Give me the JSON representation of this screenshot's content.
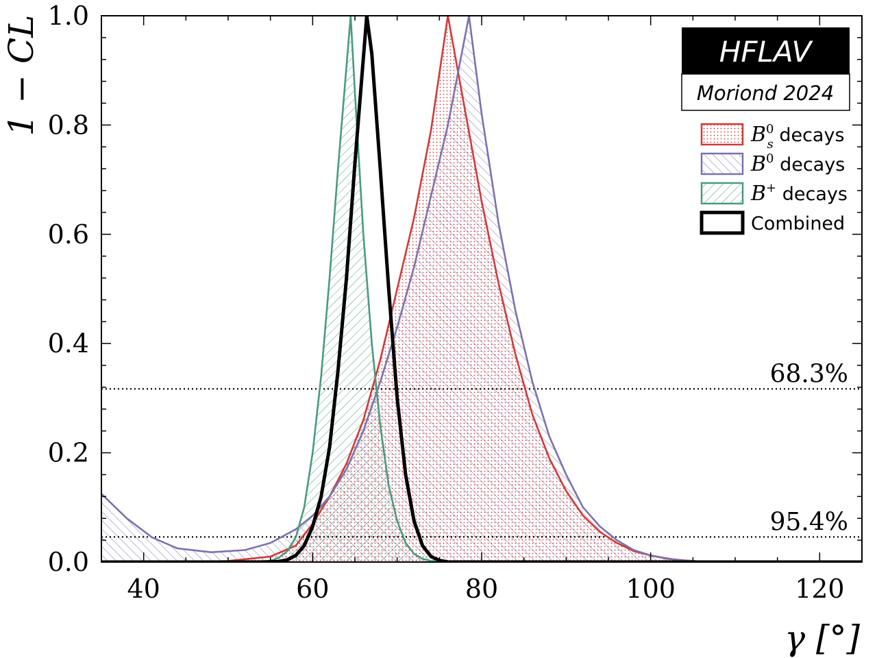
{
  "chart_data": {
    "type": "line",
    "xlabel": "γ [°]",
    "ylabel": "1 − CL",
    "xlim": [
      35,
      125
    ],
    "ylim": [
      0,
      1
    ],
    "x_ticks": [
      40,
      60,
      80,
      100,
      120
    ],
    "x_tick_labels": [
      "40",
      "60",
      "80",
      "100",
      "120"
    ],
    "y_ticks": [
      0.0,
      0.2,
      0.4,
      0.6,
      0.8,
      1.0
    ],
    "y_tick_labels": [
      "0.0",
      "0.2",
      "0.4",
      "0.6",
      "0.8",
      "1.0"
    ],
    "grid": false,
    "legend_placement": "top-right",
    "badge": {
      "title": "HFLAV",
      "subtitle": "Moriond 2024"
    },
    "reference_lines": [
      {
        "y": 0.317,
        "label": "68.3%"
      },
      {
        "y": 0.046,
        "label": "95.4%"
      }
    ],
    "series": [
      {
        "legend_main": "B",
        "legend_sup": "0",
        "legend_sub": "s",
        "legend_suffix": " decays",
        "color": "#d03a3a",
        "fill": "dots",
        "peak": 76.0,
        "x": [
          35,
          45,
          50,
          55,
          58,
          60,
          62,
          64,
          66,
          68,
          70,
          72,
          74,
          76,
          78,
          80,
          82,
          84,
          86,
          88,
          90,
          92,
          94,
          96,
          98,
          100,
          102,
          104,
          106,
          110,
          115,
          125
        ],
        "y": [
          0.0,
          0.0,
          0.002,
          0.01,
          0.03,
          0.07,
          0.12,
          0.18,
          0.26,
          0.37,
          0.5,
          0.63,
          0.79,
          1.0,
          0.83,
          0.66,
          0.51,
          0.38,
          0.27,
          0.19,
          0.13,
          0.085,
          0.055,
          0.035,
          0.02,
          0.012,
          0.006,
          0.003,
          0.001,
          0.0,
          0.0,
          0.0
        ]
      },
      {
        "legend_main": "B",
        "legend_sup": "0",
        "legend_sub": "",
        "legend_suffix": " decays",
        "color": "#7a72ad",
        "fill": "hatch-right",
        "peak": 78.5,
        "x": [
          35,
          38,
          41,
          44,
          48,
          52,
          55,
          58,
          60,
          62,
          64,
          66,
          68,
          70,
          72,
          74,
          76,
          78.5,
          80,
          82,
          84,
          86,
          88,
          90,
          92,
          94,
          96,
          98,
          100,
          103,
          106,
          110,
          125
        ],
        "y": [
          0.125,
          0.08,
          0.045,
          0.025,
          0.018,
          0.022,
          0.035,
          0.06,
          0.085,
          0.12,
          0.17,
          0.24,
          0.33,
          0.43,
          0.54,
          0.67,
          0.8,
          1.0,
          0.82,
          0.62,
          0.46,
          0.33,
          0.23,
          0.16,
          0.1,
          0.065,
          0.04,
          0.022,
          0.012,
          0.004,
          0.001,
          0.0,
          0.0
        ]
      },
      {
        "legend_main": "B",
        "legend_sup": "+",
        "legend_sub": "",
        "legend_suffix": " decays",
        "color": "#4a9a7c",
        "fill": "hatch-left",
        "peak": 64.5,
        "x": [
          35,
          52,
          55,
          56,
          57,
          58,
          59,
          60,
          61,
          62,
          63,
          64.5,
          65,
          66,
          67,
          68,
          69,
          70,
          71,
          72,
          73,
          74,
          76,
          125
        ],
        "y": [
          0.0,
          0.0,
          0.002,
          0.008,
          0.02,
          0.045,
          0.1,
          0.2,
          0.34,
          0.52,
          0.72,
          1.0,
          0.86,
          0.6,
          0.4,
          0.25,
          0.14,
          0.075,
          0.035,
          0.015,
          0.006,
          0.002,
          0.0,
          0.0
        ]
      },
      {
        "legend_main": "Combined",
        "legend_sup": "",
        "legend_sub": "",
        "legend_suffix": "",
        "color": "#000000",
        "fill": "none",
        "peak": 66.4,
        "x": [
          35,
          54,
          56,
          57,
          58,
          59,
          60,
          61,
          62,
          63,
          64,
          65,
          66.4,
          67,
          68,
          69,
          70,
          71,
          72,
          73,
          74,
          75,
          76,
          125
        ],
        "y": [
          0.0,
          0.0,
          0.001,
          0.004,
          0.012,
          0.03,
          0.065,
          0.12,
          0.21,
          0.35,
          0.52,
          0.73,
          1.0,
          0.93,
          0.72,
          0.5,
          0.3,
          0.16,
          0.075,
          0.03,
          0.01,
          0.003,
          0.0,
          0.0
        ]
      }
    ]
  }
}
